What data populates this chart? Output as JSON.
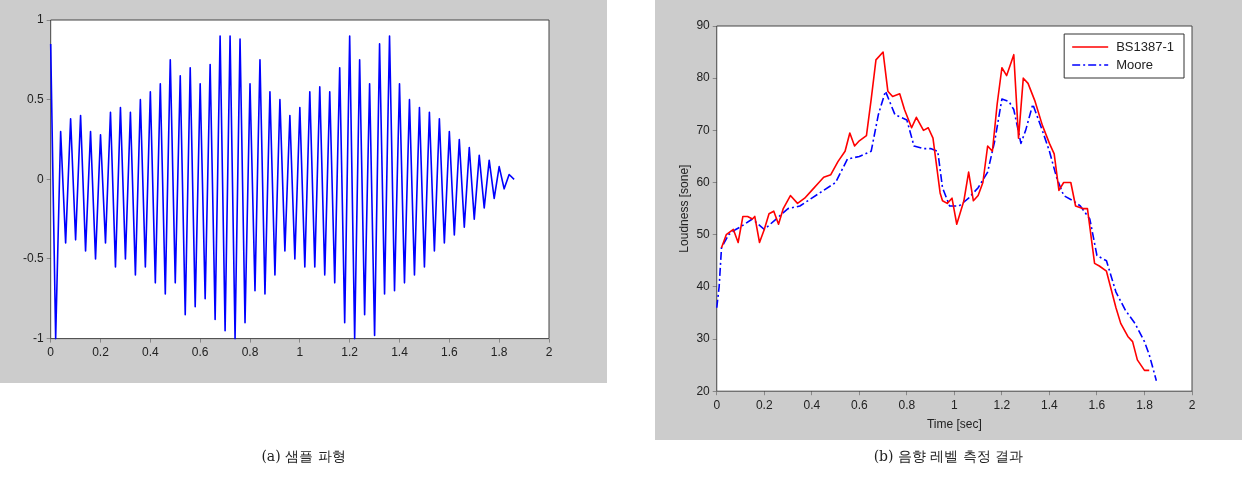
{
  "chart_data": [
    {
      "type": "line",
      "title": "(a) 샘플 파형",
      "xlim": [
        0,
        2
      ],
      "xticks": [
        0,
        0.2,
        0.4,
        0.6,
        0.8,
        1,
        1.2,
        1.4,
        1.6,
        1.8,
        2
      ],
      "ylim": [
        -1,
        1
      ],
      "yticks": [
        -1,
        -0.5,
        0,
        0.5,
        1
      ],
      "grid": false,
      "legend": false,
      "marker": "none",
      "series": [
        {
          "color": "#0000ff",
          "line_style": "solid",
          "x": [
            0,
            0.02,
            0.04,
            0.06,
            0.08,
            0.1,
            0.12,
            0.14,
            0.16,
            0.18,
            0.2,
            0.22,
            0.24,
            0.26,
            0.28,
            0.3,
            0.32,
            0.34,
            0.36,
            0.38,
            0.4,
            0.42,
            0.44,
            0.46,
            0.48,
            0.5,
            0.52,
            0.54,
            0.56,
            0.58,
            0.6,
            0.62,
            0.64,
            0.66,
            0.68,
            0.7,
            0.72,
            0.74,
            0.76,
            0.78,
            0.8,
            0.82,
            0.84,
            0.86,
            0.88,
            0.9,
            0.92,
            0.94,
            0.96,
            0.98,
            1,
            1.02,
            1.04,
            1.06,
            1.08,
            1.1,
            1.12,
            1.14,
            1.16,
            1.18,
            1.2,
            1.22,
            1.24,
            1.26,
            1.28,
            1.3,
            1.32,
            1.34,
            1.36,
            1.38,
            1.4,
            1.42,
            1.44,
            1.46,
            1.48,
            1.5,
            1.52,
            1.54,
            1.56,
            1.58,
            1.6,
            1.62,
            1.64,
            1.66,
            1.68,
            1.7,
            1.72,
            1.74,
            1.76,
            1.78,
            1.8,
            1.82,
            1.84,
            1.86
          ],
          "values": [
            0.85,
            -1,
            0.3,
            -0.4,
            0.38,
            -0.38,
            0.4,
            -0.45,
            0.3,
            -0.5,
            0.28,
            -0.4,
            0.42,
            -0.55,
            0.45,
            -0.5,
            0.42,
            -0.6,
            0.5,
            -0.55,
            0.55,
            -0.65,
            0.6,
            -0.72,
            0.75,
            -0.65,
            0.65,
            -0.85,
            0.7,
            -0.8,
            0.6,
            -0.75,
            0.72,
            -0.88,
            0.9,
            -0.95,
            0.9,
            -1,
            0.88,
            -0.9,
            0.6,
            -0.7,
            0.75,
            -0.72,
            0.55,
            -0.6,
            0.5,
            -0.45,
            0.4,
            -0.5,
            0.45,
            -0.55,
            0.55,
            -0.55,
            0.58,
            -0.6,
            0.55,
            -0.65,
            0.7,
            -0.9,
            0.9,
            -1,
            0.75,
            -0.85,
            0.6,
            -0.98,
            0.85,
            -0.72,
            0.9,
            -0.7,
            0.6,
            -0.65,
            0.5,
            -0.6,
            0.45,
            -0.55,
            0.42,
            -0.45,
            0.38,
            -0.4,
            0.3,
            -0.35,
            0.25,
            -0.3,
            0.2,
            -0.25,
            0.15,
            -0.18,
            0.12,
            -0.12,
            0.08,
            -0.06,
            0.03,
            0
          ]
        }
      ]
    },
    {
      "type": "line",
      "title": "(b) 음향 레벨 측정 결과",
      "xlabel": "Time [sec]",
      "ylabel": "Loudness [sone]",
      "xlim": [
        0,
        2
      ],
      "xticks": [
        0,
        0.2,
        0.4,
        0.6,
        0.8,
        1,
        1.2,
        1.4,
        1.6,
        1.8,
        2
      ],
      "ylim": [
        20,
        90
      ],
      "yticks": [
        20,
        30,
        40,
        50,
        60,
        70,
        80,
        90
      ],
      "grid": false,
      "legend": "top right",
      "marker": "none",
      "series": [
        {
          "name": "BS1387-1",
          "color": "#ff0000",
          "line_style": "solid",
          "x": [
            0.02,
            0.04,
            0.07,
            0.09,
            0.11,
            0.13,
            0.15,
            0.16,
            0.18,
            0.2,
            0.22,
            0.24,
            0.26,
            0.28,
            0.31,
            0.34,
            0.37,
            0.4,
            0.43,
            0.45,
            0.48,
            0.51,
            0.54,
            0.56,
            0.58,
            0.6,
            0.63,
            0.65,
            0.67,
            0.7,
            0.72,
            0.74,
            0.77,
            0.79,
            0.82,
            0.84,
            0.87,
            0.89,
            0.91,
            0.94,
            0.95,
            0.97,
            0.99,
            1.01,
            1.04,
            1.06,
            1.08,
            1.1,
            1.12,
            1.14,
            1.16,
            1.18,
            1.2,
            1.22,
            1.25,
            1.27,
            1.29,
            1.31,
            1.34,
            1.37,
            1.4,
            1.42,
            1.44,
            1.46,
            1.49,
            1.51,
            1.54,
            1.56,
            1.59,
            1.61,
            1.64,
            1.68,
            1.7,
            1.73,
            1.75,
            1.77,
            1.8,
            1.82
          ],
          "values": [
            47.5,
            50,
            51,
            48.5,
            53.5,
            53.5,
            53,
            53.5,
            48.5,
            51,
            54,
            54.5,
            52,
            55,
            57.5,
            56,
            57,
            58.5,
            60,
            61,
            61.5,
            64,
            66,
            69.5,
            67,
            68,
            69,
            76,
            83.5,
            85,
            77.5,
            76.5,
            77,
            74,
            70.5,
            72.5,
            70,
            70.5,
            68.5,
            58,
            56.5,
            56,
            57,
            52,
            56.5,
            62,
            56.5,
            57.5,
            60,
            67,
            66,
            75,
            82,
            80.5,
            84.5,
            68.5,
            80,
            79,
            75.5,
            71,
            67.5,
            65.5,
            58.5,
            60,
            60,
            55.5,
            55,
            55,
            44.5,
            44,
            43,
            36,
            33,
            30.5,
            29.5,
            26,
            24,
            24
          ]
        },
        {
          "name": "Moore",
          "color": "#0000ff",
          "line_style": "dashed",
          "x": [
            0,
            0.01,
            0.02,
            0.05,
            0.08,
            0.1,
            0.15,
            0.2,
            0.25,
            0.3,
            0.35,
            0.4,
            0.45,
            0.5,
            0.55,
            0.6,
            0.65,
            0.68,
            0.71,
            0.75,
            0.8,
            0.83,
            0.87,
            0.9,
            0.93,
            0.95,
            0.98,
            1.02,
            1.06,
            1.1,
            1.14,
            1.17,
            1.2,
            1.23,
            1.25,
            1.28,
            1.3,
            1.33,
            1.37,
            1.4,
            1.43,
            1.46,
            1.5,
            1.53,
            1.57,
            1.6,
            1.64,
            1.68,
            1.72,
            1.76,
            1.8,
            1.82,
            1.85
          ],
          "values": [
            36,
            40,
            47.5,
            50,
            51,
            51.5,
            53,
            51,
            53,
            55,
            55.5,
            57,
            58.5,
            60,
            64.5,
            65,
            66,
            73,
            77.5,
            73,
            72,
            67,
            66.5,
            66.5,
            66,
            59,
            55.5,
            55.5,
            57,
            59,
            62,
            68,
            76,
            75.5,
            74,
            67.5,
            70,
            75,
            70,
            66,
            61,
            57.5,
            56.5,
            55.5,
            53,
            46,
            45,
            39,
            35.5,
            33,
            29.5,
            27,
            22
          ]
        }
      ]
    }
  ]
}
